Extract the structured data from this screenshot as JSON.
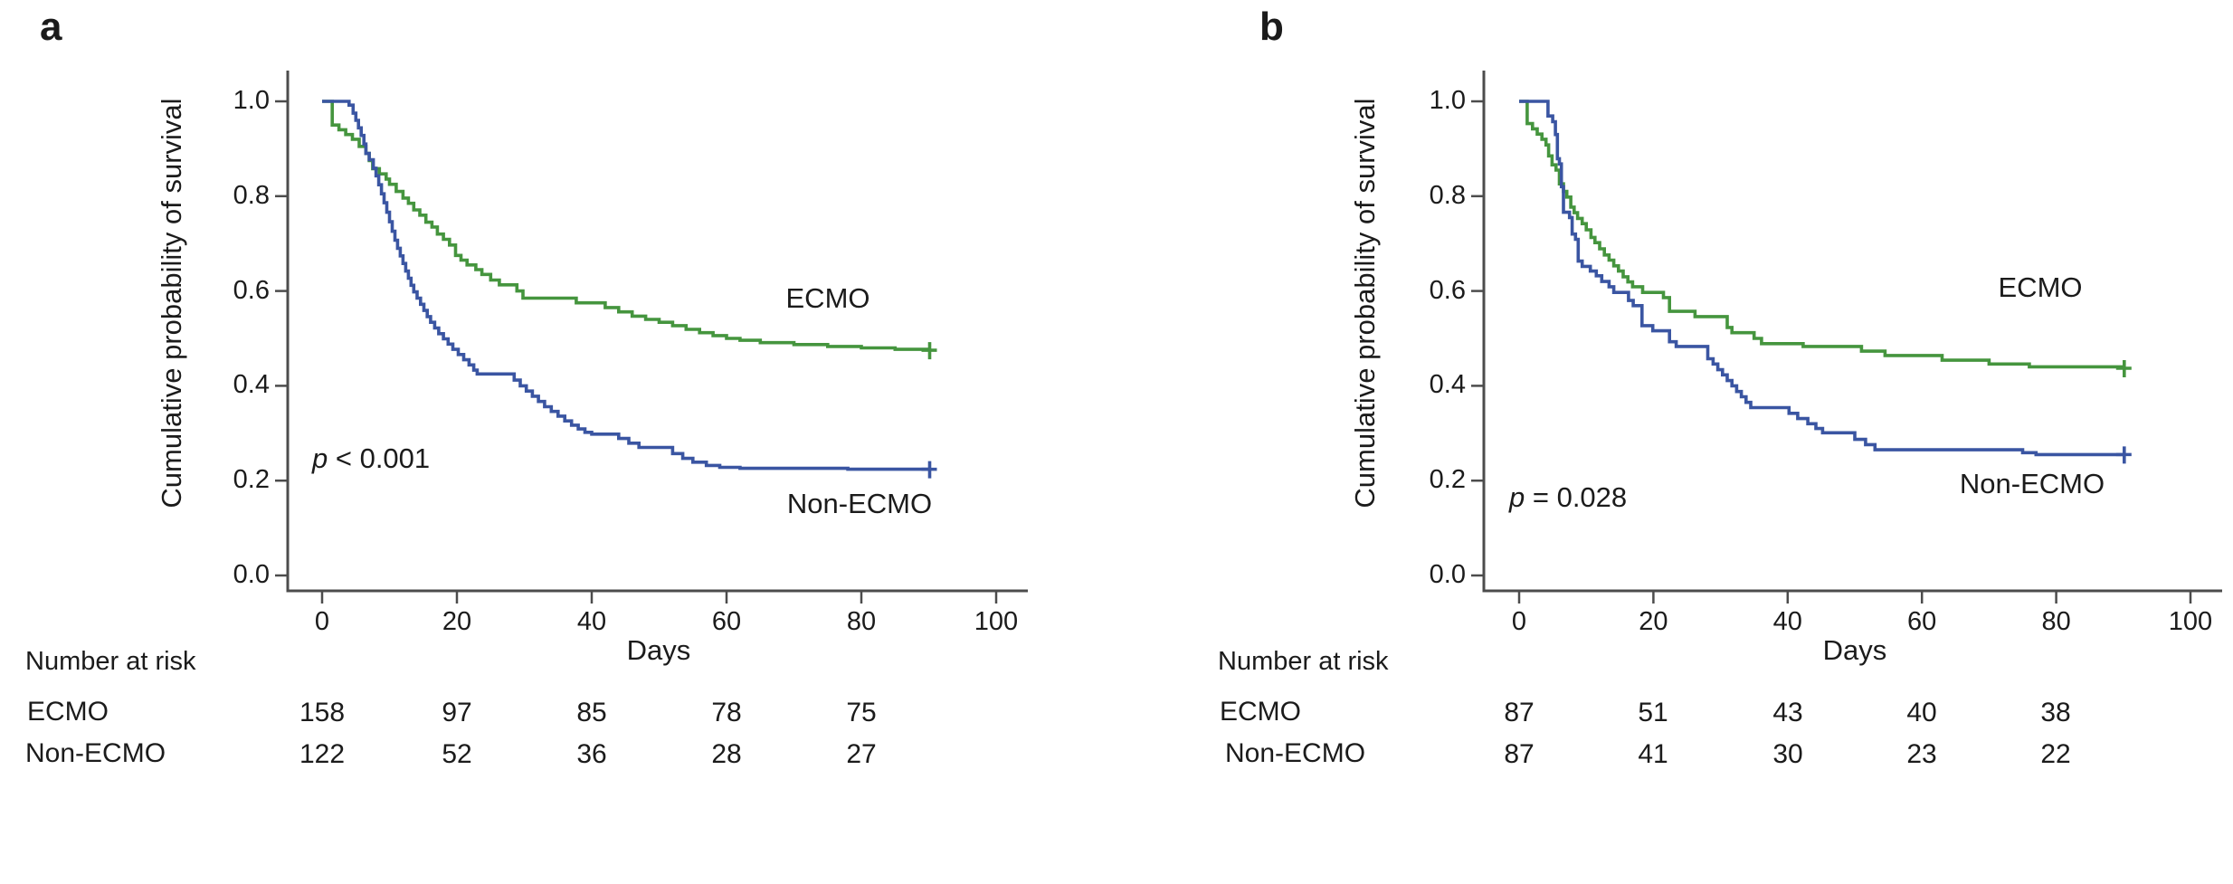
{
  "figure": {
    "panels": [
      {
        "label": "a",
        "ylabel": "Cumulative probability of survival",
        "xlabel": "Days",
        "p_text": "p < 0.001",
        "curve_label_ecmo": "ECMO",
        "curve_label_non_ecmo": "Non-ECMO",
        "risk_table": {
          "title": "Number at risk",
          "rows": [
            {
              "label": "ECMO",
              "values": [
                "158",
                "97",
                "85",
                "78",
                "75"
              ]
            },
            {
              "label": "Non-ECMO",
              "values": [
                "122",
                "52",
                "36",
                "28",
                "27"
              ]
            }
          ]
        }
      },
      {
        "label": "b",
        "ylabel": "Cumulative probability of survival",
        "xlabel": "Days",
        "p_text": "p = 0.028",
        "curve_label_ecmo": "ECMO",
        "curve_label_non_ecmo": "Non-ECMO",
        "risk_table": {
          "title": "Number at risk",
          "rows": [
            {
              "label": "ECMO",
              "values": [
                "87",
                "51",
                "43",
                "40",
                "38"
              ]
            },
            {
              "label": "Non-ECMO",
              "values": [
                "87",
                "41",
                "30",
                "23",
                "22"
              ]
            }
          ]
        }
      }
    ]
  },
  "chart_data": [
    {
      "type": "line",
      "style": "kaplan-meier-step",
      "panel": "a",
      "xlabel": "Days",
      "ylabel": "Cumulative probability of survival",
      "xlim": [
        0,
        100
      ],
      "ylim": [
        0.0,
        1.0
      ],
      "xticks": [
        0,
        20,
        40,
        60,
        80,
        100
      ],
      "yticks": [
        1.0,
        0.8,
        0.6,
        0.4,
        0.2,
        0.0
      ],
      "ytick_labels": [
        "1.0",
        "0.8",
        "0.6",
        "0.4",
        "0.2",
        "0.0"
      ],
      "grid": false,
      "legend": "inline-labels",
      "annotations": {
        "p_value": "p < 0.001"
      },
      "series": [
        {
          "name": "ECMO",
          "color": "#45953e",
          "censor_end_day": 90,
          "points": [
            [
              0,
              1
            ],
            [
              1.5,
              0.95
            ],
            [
              2.5,
              0.94
            ],
            [
              3.5,
              0.93
            ],
            [
              4.5,
              0.92
            ],
            [
              5.5,
              0.905
            ],
            [
              6.5,
              0.89
            ],
            [
              7,
              0.875
            ],
            [
              7.5,
              0.858
            ],
            [
              8.5,
              0.847
            ],
            [
              9.5,
              0.836
            ],
            [
              10,
              0.825
            ],
            [
              11,
              0.81
            ],
            [
              12,
              0.796
            ],
            [
              12.8,
              0.785
            ],
            [
              13.6,
              0.771
            ],
            [
              14.5,
              0.76
            ],
            [
              15.4,
              0.745
            ],
            [
              16.3,
              0.735
            ],
            [
              17.1,
              0.72
            ],
            [
              18,
              0.709
            ],
            [
              18.9,
              0.697
            ],
            [
              19.8,
              0.675
            ],
            [
              20.6,
              0.665
            ],
            [
              21.5,
              0.655
            ],
            [
              22.8,
              0.645
            ],
            [
              23.7,
              0.635
            ],
            [
              25,
              0.623
            ],
            [
              26.3,
              0.613
            ],
            [
              28.9,
              0.6
            ],
            [
              29.8,
              0.585
            ],
            [
              37.7,
              0.575
            ],
            [
              42,
              0.565
            ],
            [
              44,
              0.556
            ],
            [
              46,
              0.547
            ],
            [
              48,
              0.54
            ],
            [
              50,
              0.534
            ],
            [
              52,
              0.527
            ],
            [
              54,
              0.519
            ],
            [
              56,
              0.512
            ],
            [
              58,
              0.506
            ],
            [
              60,
              0.5
            ],
            [
              62,
              0.496
            ],
            [
              65,
              0.491
            ],
            [
              70,
              0.487
            ],
            [
              75,
              0.483
            ],
            [
              80,
              0.48
            ],
            [
              85,
              0.477
            ],
            [
              90,
              0.475
            ]
          ]
        },
        {
          "name": "Non-ECMO",
          "color": "#3a55a2",
          "censor_end_day": 90,
          "points": [
            [
              0,
              1
            ],
            [
              4,
              0.992
            ],
            [
              4.6,
              0.975
            ],
            [
              5,
              0.96
            ],
            [
              5.4,
              0.944
            ],
            [
              5.8,
              0.928
            ],
            [
              6.2,
              0.91
            ],
            [
              6.5,
              0.89
            ],
            [
              7,
              0.877
            ],
            [
              7.6,
              0.859
            ],
            [
              8,
              0.843
            ],
            [
              8.4,
              0.824
            ],
            [
              8.8,
              0.805
            ],
            [
              9.2,
              0.786
            ],
            [
              9.6,
              0.766
            ],
            [
              10,
              0.746
            ],
            [
              10.4,
              0.726
            ],
            [
              10.8,
              0.707
            ],
            [
              11.2,
              0.69
            ],
            [
              11.6,
              0.674
            ],
            [
              12,
              0.658
            ],
            [
              12.4,
              0.642
            ],
            [
              12.8,
              0.627
            ],
            [
              13.2,
              0.612
            ],
            [
              13.6,
              0.598
            ],
            [
              14.1,
              0.585
            ],
            [
              14.6,
              0.572
            ],
            [
              15.1,
              0.559
            ],
            [
              15.6,
              0.546
            ],
            [
              16.1,
              0.534
            ],
            [
              16.7,
              0.522
            ],
            [
              17.3,
              0.51
            ],
            [
              18,
              0.499
            ],
            [
              18.7,
              0.488
            ],
            [
              19.4,
              0.477
            ],
            [
              20.2,
              0.466
            ],
            [
              21,
              0.455
            ],
            [
              21.8,
              0.444
            ],
            [
              22.5,
              0.433
            ],
            [
              23,
              0.425
            ],
            [
              28.5,
              0.412
            ],
            [
              29.4,
              0.4
            ],
            [
              30.3,
              0.389
            ],
            [
              31.2,
              0.378
            ],
            [
              32.1,
              0.367
            ],
            [
              33,
              0.356
            ],
            [
              34,
              0.346
            ],
            [
              35,
              0.336
            ],
            [
              36,
              0.326
            ],
            [
              37,
              0.317
            ],
            [
              38,
              0.309
            ],
            [
              39,
              0.302
            ],
            [
              40,
              0.298
            ],
            [
              44,
              0.289
            ],
            [
              45.5,
              0.279
            ],
            [
              47,
              0.27
            ],
            [
              52,
              0.257
            ],
            [
              53.5,
              0.247
            ],
            [
              55,
              0.239
            ],
            [
              57,
              0.232
            ],
            [
              59,
              0.228
            ],
            [
              62,
              0.226
            ],
            [
              78,
              0.224
            ],
            [
              90,
              0.224
            ]
          ]
        }
      ],
      "number_at_risk": {
        "days": [
          0,
          20,
          40,
          60,
          80
        ],
        "ECMO": [
          158,
          97,
          85,
          78,
          75
        ],
        "Non-ECMO": [
          122,
          52,
          36,
          28,
          27
        ]
      }
    },
    {
      "type": "line",
      "style": "kaplan-meier-step",
      "panel": "b",
      "xlabel": "Days",
      "ylabel": "Cumulative probability of survival",
      "xlim": [
        0,
        100
      ],
      "ylim": [
        0.0,
        1.0
      ],
      "xticks": [
        0,
        20,
        40,
        60,
        80,
        100
      ],
      "yticks": [
        1.0,
        0.8,
        0.6,
        0.4,
        0.2,
        0.0
      ],
      "ytick_labels": [
        "1.0",
        "0.8",
        "0.6",
        "0.4",
        "0.2",
        "0.0"
      ],
      "grid": false,
      "legend": "inline-labels",
      "annotations": {
        "p_value": "p = 0.028"
      },
      "series": [
        {
          "name": "ECMO",
          "color": "#45953e",
          "censor_end_day": 90,
          "points": [
            [
              0,
              1
            ],
            [
              1.2,
              0.953
            ],
            [
              2,
              0.942
            ],
            [
              2.7,
              0.931
            ],
            [
              3.4,
              0.92
            ],
            [
              4,
              0.908
            ],
            [
              4.4,
              0.885
            ],
            [
              4.9,
              0.866
            ],
            [
              5.5,
              0.855
            ],
            [
              6,
              0.826
            ],
            [
              6.6,
              0.81
            ],
            [
              7.1,
              0.798
            ],
            [
              7.7,
              0.777
            ],
            [
              8.2,
              0.765
            ],
            [
              8.7,
              0.753
            ],
            [
              9.4,
              0.742
            ],
            [
              10,
              0.729
            ],
            [
              10.7,
              0.713
            ],
            [
              11.3,
              0.702
            ],
            [
              12,
              0.689
            ],
            [
              12.7,
              0.676
            ],
            [
              13.4,
              0.665
            ],
            [
              14.1,
              0.653
            ],
            [
              14.8,
              0.642
            ],
            [
              15.5,
              0.63
            ],
            [
              16.2,
              0.619
            ],
            [
              16.9,
              0.609
            ],
            [
              18.4,
              0.597
            ],
            [
              21.5,
              0.586
            ],
            [
              22.4,
              0.557
            ],
            [
              26.2,
              0.546
            ],
            [
              31,
              0.523
            ],
            [
              31.7,
              0.512
            ],
            [
              35,
              0.5
            ],
            [
              36.1,
              0.489
            ],
            [
              42.3,
              0.483
            ],
            [
              51,
              0.473
            ],
            [
              54.5,
              0.464
            ],
            [
              63,
              0.454
            ],
            [
              70,
              0.446
            ],
            [
              76,
              0.44
            ],
            [
              90,
              0.437
            ]
          ]
        },
        {
          "name": "Non-ECMO",
          "color": "#3a55a2",
          "censor_end_day": 90,
          "points": [
            [
              0,
              1
            ],
            [
              4.3,
              0.969
            ],
            [
              5,
              0.957
            ],
            [
              5.4,
              0.93
            ],
            [
              5.7,
              0.879
            ],
            [
              6,
              0.868
            ],
            [
              6.3,
              0.82
            ],
            [
              6.6,
              0.766
            ],
            [
              7.5,
              0.755
            ],
            [
              7.9,
              0.72
            ],
            [
              8.4,
              0.709
            ],
            [
              8.8,
              0.663
            ],
            [
              9.4,
              0.652
            ],
            [
              10.6,
              0.642
            ],
            [
              11.5,
              0.632
            ],
            [
              12.3,
              0.62
            ],
            [
              13.4,
              0.609
            ],
            [
              14.1,
              0.597
            ],
            [
              16.3,
              0.58
            ],
            [
              17,
              0.569
            ],
            [
              18.3,
              0.527
            ],
            [
              19.9,
              0.516
            ],
            [
              22.4,
              0.493
            ],
            [
              23.4,
              0.483
            ],
            [
              28.1,
              0.457
            ],
            [
              28.9,
              0.446
            ],
            [
              29.6,
              0.434
            ],
            [
              30.3,
              0.423
            ],
            [
              31,
              0.411
            ],
            [
              31.7,
              0.4
            ],
            [
              32.4,
              0.388
            ],
            [
              33.1,
              0.377
            ],
            [
              33.8,
              0.365
            ],
            [
              34.5,
              0.354
            ],
            [
              40.2,
              0.342
            ],
            [
              41.5,
              0.331
            ],
            [
              43,
              0.32
            ],
            [
              44.2,
              0.31
            ],
            [
              45.2,
              0.301
            ],
            [
              50,
              0.287
            ],
            [
              51.6,
              0.276
            ],
            [
              53,
              0.265
            ],
            [
              75,
              0.259
            ],
            [
              77,
              0.255
            ],
            [
              90,
              0.255
            ]
          ]
        }
      ],
      "number_at_risk": {
        "days": [
          0,
          20,
          40,
          60,
          80
        ],
        "ECMO": [
          87,
          51,
          43,
          40,
          38
        ],
        "Non-ECMO": [
          87,
          41,
          30,
          23,
          22
        ]
      }
    }
  ],
  "colors": {
    "ecmo_green": "#45953e",
    "non_ecmo_blue": "#3a55a2",
    "axis": "#4c4c4c",
    "text": "#1b1b1b"
  }
}
